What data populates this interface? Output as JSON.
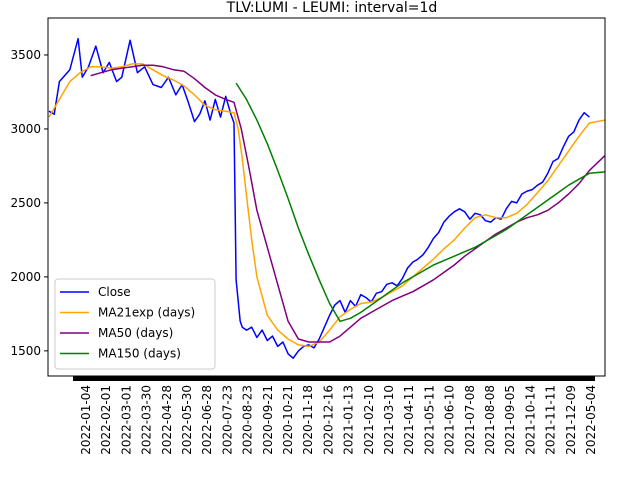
{
  "chart_data": {
    "type": "line",
    "title": "TLV:LUMI - LEUMI: interval=1d",
    "xlabel": "",
    "ylabel": "",
    "ylim": [
      1330,
      3750
    ],
    "yticks": [
      1500,
      2000,
      2500,
      3000,
      3500
    ],
    "ytick_labels": [
      "1500",
      "2000",
      "2500",
      "3000",
      "3500"
    ],
    "x_tick_labels": [
      "2022-01-04",
      "2022-02-01",
      "2022-03-01",
      "2022-03-30",
      "2022-04-28",
      "2022-05-30",
      "2022-06-28",
      "2020-07-23",
      "2020-08-23",
      "2020-09-21",
      "2020-10-21",
      "2020-11-18",
      "2020-12-16",
      "2021-01-13",
      "2021-02-10",
      "2021-03-10",
      "2021-04-11",
      "2021-05-11",
      "2021-06-10",
      "2021-07-08",
      "2021-08-08",
      "2021-09-05",
      "2021-10-14",
      "2021-11-11",
      "2021-12-09",
      "2022-05-04"
    ],
    "x_range": [
      -1,
      535
    ],
    "grid": false,
    "legend_position": "lower-left",
    "series": [
      {
        "name": "Close",
        "color": "#0000ff",
        "x": [
          0,
          5,
          10,
          20,
          28,
          32,
          38,
          45,
          52,
          58,
          65,
          70,
          78,
          85,
          92,
          100,
          108,
          115,
          122,
          128,
          134,
          140,
          145,
          150,
          155,
          160,
          165,
          170,
          175,
          178,
          180,
          184,
          186,
          190,
          195,
          200,
          205,
          210,
          215,
          220,
          225,
          230,
          235,
          240,
          245,
          250,
          255,
          260,
          265,
          270,
          275,
          280,
          285,
          290,
          295,
          300,
          305,
          310,
          315,
          320,
          325,
          330,
          335,
          340,
          345,
          350,
          355,
          360,
          365,
          370,
          375,
          380,
          385,
          390,
          395,
          400,
          405,
          410,
          415,
          420,
          425,
          430,
          435,
          440,
          445,
          450,
          455,
          460,
          465,
          470,
          475,
          480,
          485,
          490,
          495,
          500,
          505,
          510,
          515,
          520
        ],
        "y": [
          3120,
          3100,
          3320,
          3400,
          3610,
          3350,
          3420,
          3560,
          3380,
          3450,
          3320,
          3350,
          3600,
          3380,
          3420,
          3300,
          3280,
          3350,
          3230,
          3300,
          3180,
          3050,
          3100,
          3190,
          3060,
          3200,
          3080,
          3220,
          3100,
          3040,
          1980,
          1700,
          1660,
          1640,
          1660,
          1590,
          1640,
          1570,
          1600,
          1530,
          1560,
          1480,
          1450,
          1500,
          1530,
          1540,
          1520,
          1580,
          1660,
          1740,
          1810,
          1840,
          1760,
          1840,
          1800,
          1880,
          1860,
          1830,
          1890,
          1900,
          1950,
          1960,
          1940,
          1990,
          2060,
          2100,
          2120,
          2150,
          2200,
          2260,
          2300,
          2370,
          2410,
          2440,
          2460,
          2440,
          2390,
          2430,
          2420,
          2380,
          2370,
          2400,
          2390,
          2460,
          2510,
          2500,
          2560,
          2580,
          2590,
          2620,
          2640,
          2700,
          2780,
          2800,
          2880,
          2950,
          2980,
          3060,
          3110,
          3080
        ]
      },
      {
        "name": "MA21exp (days)",
        "color": "#ffa500",
        "x": [
          0,
          10,
          20,
          30,
          40,
          50,
          60,
          70,
          80,
          90,
          100,
          110,
          120,
          130,
          140,
          150,
          160,
          170,
          178,
          182,
          186,
          190,
          195,
          200,
          210,
          220,
          230,
          240,
          250,
          260,
          270,
          280,
          290,
          300,
          310,
          320,
          330,
          340,
          350,
          360,
          370,
          380,
          390,
          400,
          410,
          420,
          430,
          440,
          450,
          460,
          470,
          480,
          490,
          500,
          510,
          520,
          535
        ],
        "y": [
          3080,
          3200,
          3320,
          3380,
          3420,
          3420,
          3410,
          3420,
          3440,
          3440,
          3400,
          3360,
          3330,
          3290,
          3230,
          3160,
          3130,
          3120,
          3110,
          3000,
          2800,
          2550,
          2250,
          2000,
          1740,
          1640,
          1580,
          1540,
          1530,
          1560,
          1640,
          1730,
          1780,
          1820,
          1830,
          1860,
          1900,
          1940,
          2000,
          2060,
          2120,
          2190,
          2250,
          2330,
          2400,
          2420,
          2400,
          2400,
          2430,
          2490,
          2570,
          2650,
          2750,
          2850,
          2950,
          3040,
          3060
        ]
      },
      {
        "name": "MA50 (days)",
        "color": "#800080",
        "x": [
          40,
          50,
          60,
          70,
          80,
          90,
          100,
          110,
          120,
          130,
          140,
          150,
          160,
          170,
          178,
          185,
          192,
          200,
          210,
          220,
          230,
          240,
          250,
          260,
          270,
          280,
          290,
          300,
          310,
          320,
          330,
          340,
          350,
          360,
          370,
          380,
          390,
          400,
          410,
          420,
          430,
          440,
          450,
          460,
          470,
          480,
          490,
          500,
          510,
          520,
          535
        ],
        "y": [
          3360,
          3380,
          3400,
          3410,
          3420,
          3430,
          3430,
          3420,
          3400,
          3390,
          3340,
          3280,
          3230,
          3200,
          3180,
          3000,
          2750,
          2450,
          2200,
          1950,
          1700,
          1580,
          1560,
          1560,
          1560,
          1600,
          1660,
          1720,
          1760,
          1800,
          1840,
          1870,
          1900,
          1940,
          1980,
          2030,
          2080,
          2140,
          2190,
          2240,
          2290,
          2330,
          2370,
          2400,
          2420,
          2450,
          2500,
          2560,
          2630,
          2720,
          2820
        ]
      },
      {
        "name": "MA150 (days)",
        "color": "#008000",
        "x": [
          180,
          190,
          200,
          210,
          220,
          230,
          240,
          250,
          260,
          270,
          280,
          290,
          300,
          310,
          320,
          330,
          340,
          350,
          360,
          370,
          380,
          390,
          400,
          410,
          420,
          430,
          440,
          450,
          460,
          470,
          480,
          490,
          500,
          510,
          520,
          535
        ],
        "y": [
          3310,
          3200,
          3060,
          2900,
          2720,
          2530,
          2330,
          2150,
          1980,
          1820,
          1700,
          1720,
          1760,
          1810,
          1860,
          1910,
          1960,
          2000,
          2040,
          2080,
          2110,
          2140,
          2170,
          2200,
          2240,
          2280,
          2320,
          2370,
          2420,
          2470,
          2520,
          2570,
          2620,
          2660,
          2700,
          2710
        ]
      }
    ]
  }
}
